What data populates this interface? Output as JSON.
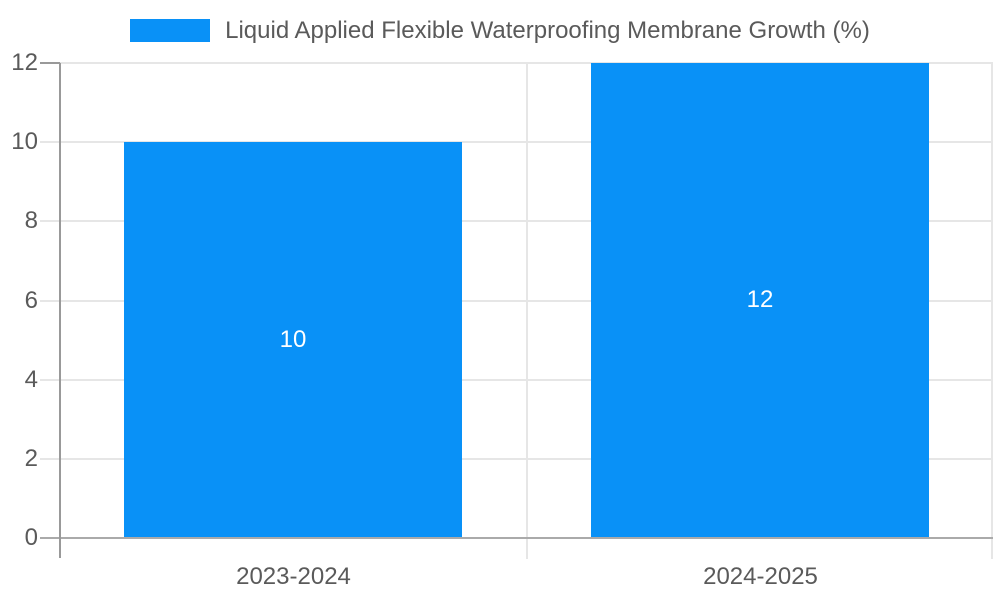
{
  "chart_data": {
    "type": "bar",
    "orientation": "vertical",
    "title": "Liquid Applied Flexible Waterproofing Membrane Growth (%)",
    "categories": [
      "2023-2024",
      "2024-2025"
    ],
    "series": [
      {
        "name": "Liquid Applied Flexible Waterproofing Membrane Growth (%)",
        "values": [
          10,
          12
        ]
      }
    ],
    "bar_value_labels": [
      "10",
      "12"
    ],
    "xlabel": "",
    "ylabel": "",
    "ylim": [
      0,
      12
    ],
    "yticks": [
      0,
      2,
      4,
      6,
      8,
      10,
      12
    ],
    "grid": true,
    "legend_position": "top"
  },
  "colors": {
    "bar": "#0991f7",
    "gridline": "#e6e6e6",
    "axis_line": "#999999",
    "baseline": "#aaaaaa",
    "divider": "#e6e6e6",
    "label_text": "#5a5a5a",
    "bar_label_text": "#ffffff",
    "background": "#ffffff"
  }
}
